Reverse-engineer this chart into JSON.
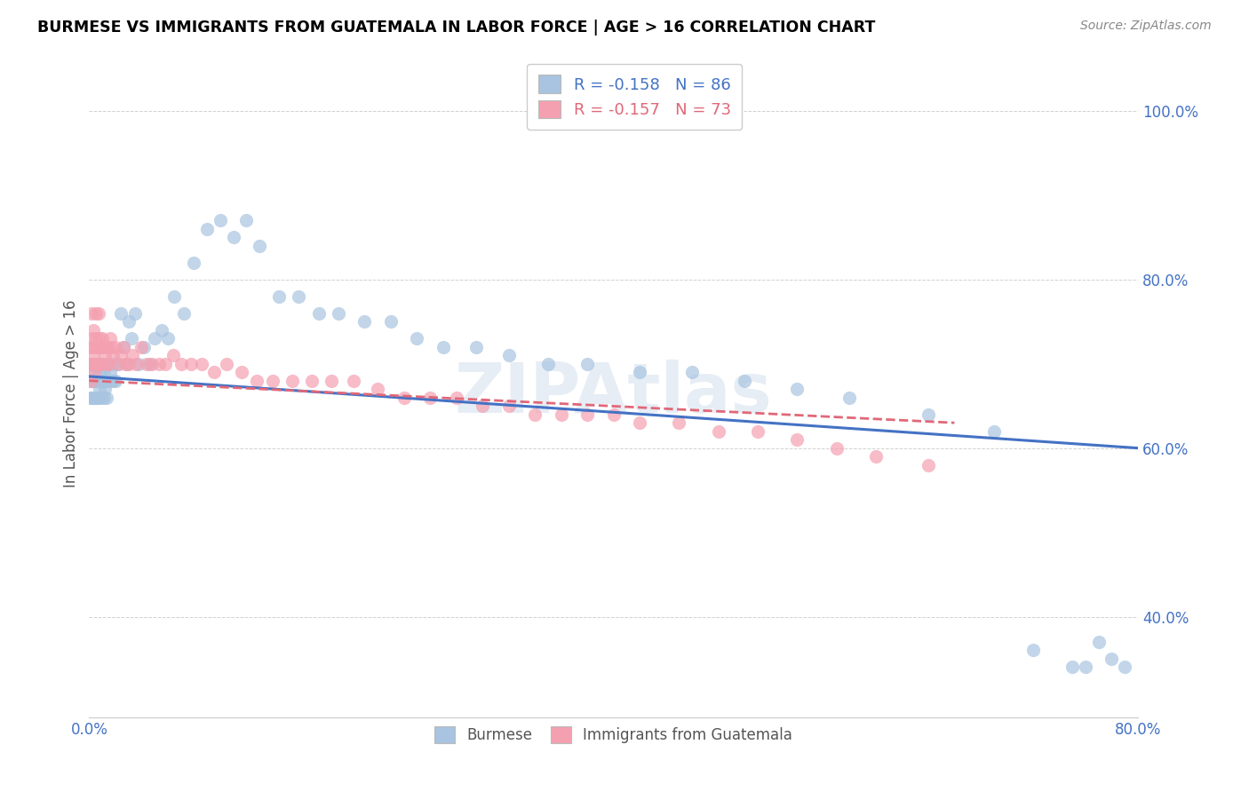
{
  "title": "BURMESE VS IMMIGRANTS FROM GUATEMALA IN LABOR FORCE | AGE > 16 CORRELATION CHART",
  "source": "Source: ZipAtlas.com",
  "ylabel": "In Labor Force | Age > 16",
  "x_min": 0.0,
  "x_max": 0.8,
  "y_min": 0.28,
  "y_max": 1.05,
  "x_ticks": [
    0.0,
    0.1,
    0.2,
    0.3,
    0.4,
    0.5,
    0.6,
    0.7,
    0.8
  ],
  "y_ticks": [
    0.4,
    0.6,
    0.8,
    1.0
  ],
  "y_tick_labels": [
    "40.0%",
    "60.0%",
    "80.0%",
    "100.0%"
  ],
  "burmese_color": "#a8c4e0",
  "guatemala_color": "#f4a0b0",
  "burmese_line_color": "#4472c4",
  "guatemala_line_color": "#e06878",
  "R_burmese": -0.158,
  "N_burmese": 86,
  "R_guatemala": -0.157,
  "N_guatemala": 73,
  "watermark": "ZIPAtlas",
  "burmese_x": [
    0.001,
    0.001,
    0.001,
    0.002,
    0.002,
    0.002,
    0.002,
    0.003,
    0.003,
    0.003,
    0.004,
    0.004,
    0.004,
    0.005,
    0.005,
    0.005,
    0.006,
    0.006,
    0.007,
    0.007,
    0.007,
    0.008,
    0.008,
    0.009,
    0.009,
    0.01,
    0.01,
    0.011,
    0.011,
    0.012,
    0.012,
    0.013,
    0.013,
    0.014,
    0.015,
    0.016,
    0.017,
    0.018,
    0.019,
    0.02,
    0.022,
    0.024,
    0.026,
    0.028,
    0.03,
    0.032,
    0.035,
    0.038,
    0.042,
    0.046,
    0.05,
    0.055,
    0.06,
    0.065,
    0.072,
    0.08,
    0.09,
    0.1,
    0.11,
    0.12,
    0.13,
    0.145,
    0.16,
    0.175,
    0.19,
    0.21,
    0.23,
    0.25,
    0.27,
    0.295,
    0.32,
    0.35,
    0.38,
    0.42,
    0.46,
    0.5,
    0.54,
    0.58,
    0.64,
    0.69,
    0.72,
    0.75,
    0.76,
    0.77,
    0.78,
    0.79
  ],
  "burmese_y": [
    0.68,
    0.7,
    0.66,
    0.69,
    0.68,
    0.7,
    0.66,
    0.68,
    0.7,
    0.66,
    0.68,
    0.7,
    0.66,
    0.68,
    0.7,
    0.66,
    0.68,
    0.66,
    0.7,
    0.68,
    0.66,
    0.69,
    0.67,
    0.7,
    0.66,
    0.7,
    0.68,
    0.69,
    0.66,
    0.68,
    0.67,
    0.7,
    0.66,
    0.68,
    0.7,
    0.69,
    0.68,
    0.7,
    0.68,
    0.68,
    0.7,
    0.76,
    0.72,
    0.7,
    0.75,
    0.73,
    0.76,
    0.7,
    0.72,
    0.7,
    0.73,
    0.74,
    0.73,
    0.78,
    0.76,
    0.82,
    0.86,
    0.87,
    0.85,
    0.87,
    0.84,
    0.78,
    0.78,
    0.76,
    0.76,
    0.75,
    0.75,
    0.73,
    0.72,
    0.72,
    0.71,
    0.7,
    0.7,
    0.69,
    0.69,
    0.68,
    0.67,
    0.66,
    0.64,
    0.62,
    0.36,
    0.34,
    0.34,
    0.37,
    0.35,
    0.34
  ],
  "guatemala_x": [
    0.001,
    0.001,
    0.002,
    0.002,
    0.002,
    0.003,
    0.003,
    0.004,
    0.004,
    0.005,
    0.005,
    0.005,
    0.006,
    0.006,
    0.007,
    0.007,
    0.008,
    0.008,
    0.009,
    0.009,
    0.01,
    0.011,
    0.012,
    0.013,
    0.014,
    0.015,
    0.016,
    0.017,
    0.018,
    0.02,
    0.022,
    0.024,
    0.026,
    0.028,
    0.03,
    0.033,
    0.036,
    0.04,
    0.044,
    0.048,
    0.053,
    0.058,
    0.064,
    0.07,
    0.078,
    0.086,
    0.095,
    0.105,
    0.116,
    0.128,
    0.14,
    0.155,
    0.17,
    0.185,
    0.202,
    0.22,
    0.24,
    0.26,
    0.28,
    0.3,
    0.32,
    0.34,
    0.36,
    0.38,
    0.4,
    0.42,
    0.45,
    0.48,
    0.51,
    0.54,
    0.57,
    0.6,
    0.64
  ],
  "guatemala_y": [
    0.68,
    0.72,
    0.73,
    0.7,
    0.76,
    0.71,
    0.74,
    0.72,
    0.69,
    0.73,
    0.7,
    0.76,
    0.72,
    0.7,
    0.76,
    0.72,
    0.7,
    0.73,
    0.72,
    0.7,
    0.73,
    0.72,
    0.71,
    0.7,
    0.72,
    0.7,
    0.73,
    0.72,
    0.71,
    0.72,
    0.7,
    0.71,
    0.72,
    0.7,
    0.7,
    0.71,
    0.7,
    0.72,
    0.7,
    0.7,
    0.7,
    0.7,
    0.71,
    0.7,
    0.7,
    0.7,
    0.69,
    0.7,
    0.69,
    0.68,
    0.68,
    0.68,
    0.68,
    0.68,
    0.68,
    0.67,
    0.66,
    0.66,
    0.66,
    0.65,
    0.65,
    0.64,
    0.64,
    0.64,
    0.64,
    0.63,
    0.63,
    0.62,
    0.62,
    0.61,
    0.6,
    0.59,
    0.58
  ]
}
